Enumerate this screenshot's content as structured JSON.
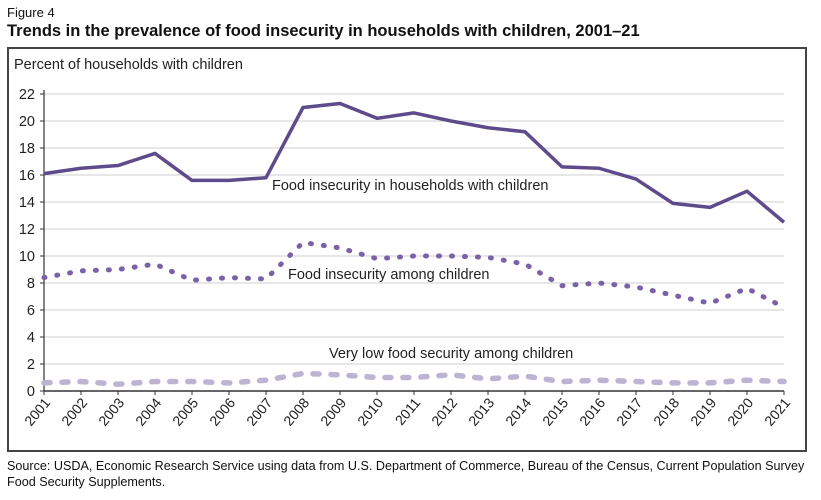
{
  "figure_label": "Figure 4",
  "title": "Trends in the prevalence of food insecurity in households with children, 2001–21",
  "source": "Source: USDA, Economic Research Service using data from U.S. Department of Commerce, Bureau of the Census, Current Population Survey Food Security Supplements.",
  "chart_data": {
    "type": "line",
    "ylabel": "Percent of households with children",
    "xlabel": "",
    "ylim": [
      0,
      22
    ],
    "yticks": [
      "0",
      "2",
      "4",
      "6",
      "8",
      "10",
      "12",
      "14",
      "16",
      "18",
      "20",
      "22"
    ],
    "categories": [
      "2001",
      "2002",
      "2003",
      "2004",
      "2005",
      "2006",
      "2007",
      "2008",
      "2009",
      "2010",
      "2011",
      "2012",
      "2013",
      "2014",
      "2015",
      "2016",
      "2017",
      "2018",
      "2019",
      "2020",
      "2021"
    ],
    "grid": true,
    "series": [
      {
        "name": "Food insecurity in households with children",
        "style": "solid",
        "color": "#5e4b8b",
        "values": [
          16.1,
          16.5,
          16.7,
          17.6,
          15.6,
          15.6,
          15.8,
          21.0,
          21.3,
          20.2,
          20.6,
          20.0,
          19.5,
          19.2,
          16.6,
          16.5,
          15.7,
          13.9,
          13.6,
          14.8,
          12.5
        ]
      },
      {
        "name": "Food insecurity among children",
        "style": "dotted",
        "color": "#7a62a8",
        "values": [
          8.4,
          8.9,
          9.0,
          9.4,
          8.2,
          8.4,
          8.3,
          11.0,
          10.6,
          9.8,
          10.0,
          10.0,
          9.9,
          9.4,
          7.8,
          8.0,
          7.7,
          7.1,
          6.5,
          7.6,
          6.2
        ]
      },
      {
        "name": "Very low food security among children",
        "style": "dashed",
        "color": "#bdb3d3",
        "values": [
          0.6,
          0.7,
          0.5,
          0.7,
          0.7,
          0.6,
          0.8,
          1.3,
          1.2,
          1.0,
          1.0,
          1.2,
          0.9,
          1.1,
          0.7,
          0.8,
          0.7,
          0.6,
          0.6,
          0.8,
          0.7
        ]
      }
    ]
  }
}
